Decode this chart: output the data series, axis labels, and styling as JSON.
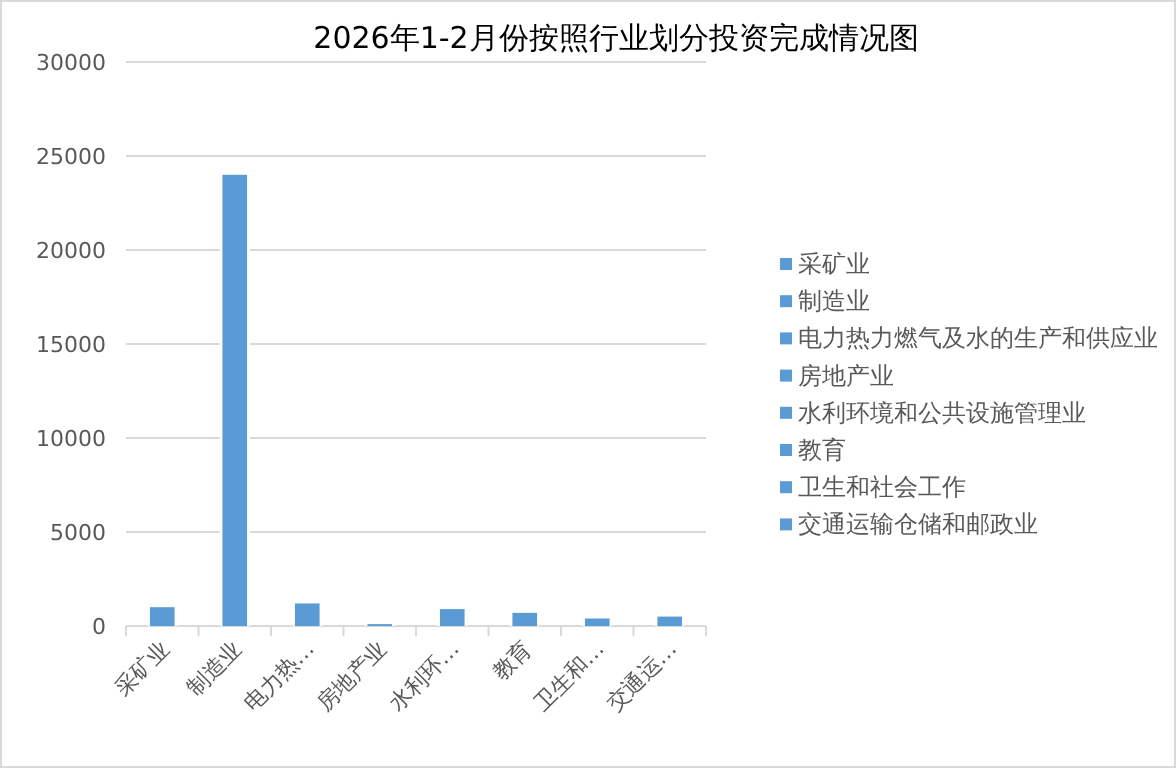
{
  "chart_data": {
    "type": "bar",
    "title": "2026年1-2月份按照行业划分投资完成情况图",
    "categories": [
      "采矿业",
      "制造业",
      "电力热…",
      "房地产业",
      "水利环…",
      "教育",
      "卫生和…",
      "交通运…"
    ],
    "stacked": true,
    "series": [
      {
        "name": "采矿业",
        "color": "#5b9bd5",
        "values": [
          1000,
          null,
          null,
          null,
          null,
          null,
          null,
          null
        ]
      },
      {
        "name": "制造业",
        "color": "#5b9bd5",
        "values": [
          null,
          24000,
          null,
          null,
          null,
          null,
          null,
          null
        ]
      },
      {
        "name": "电力热力燃气及水的生产和供应业",
        "color": "#5b9bd5",
        "values": [
          null,
          null,
          1200,
          null,
          null,
          null,
          null,
          null
        ]
      },
      {
        "name": "房地产业",
        "color": "#5b9bd5",
        "values": [
          null,
          null,
          null,
          100,
          null,
          null,
          null,
          null
        ]
      },
      {
        "name": "水利环境和公共设施管理业",
        "color": "#5b9bd5",
        "values": [
          null,
          null,
          null,
          null,
          900,
          null,
          null,
          null
        ]
      },
      {
        "name": "教育",
        "color": "#5b9bd5",
        "values": [
          null,
          null,
          null,
          null,
          null,
          700,
          null,
          null
        ]
      },
      {
        "name": "卫生和社会工作",
        "color": "#5b9bd5",
        "values": [
          null,
          null,
          null,
          null,
          null,
          null,
          400,
          null
        ]
      },
      {
        "name": "交通运输仓储和邮政业",
        "color": "#5b9bd5",
        "values": [
          null,
          null,
          null,
          null,
          null,
          null,
          null,
          500
        ]
      }
    ],
    "ylim": [
      0,
      30000
    ],
    "yticks": [
      0,
      5000,
      10000,
      15000,
      20000,
      25000,
      30000
    ],
    "grid": "y",
    "legend": "right"
  }
}
